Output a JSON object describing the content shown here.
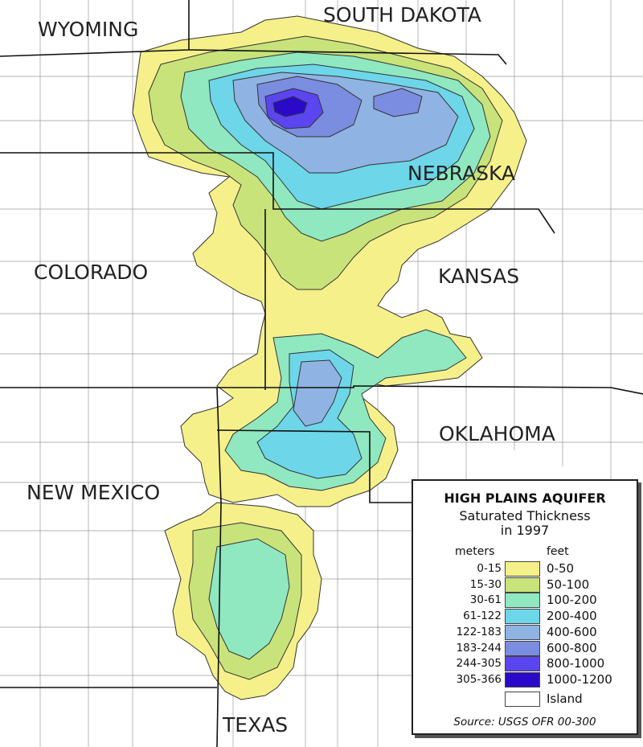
{
  "states": {
    "wyoming": "WYOMING",
    "south_dakota": "SOUTH DAKOTA",
    "nebraska": "NEBRASKA",
    "colorado": "COLORADO",
    "kansas": "KANSAS",
    "oklahoma": "OKLAHOMA",
    "new_mexico": "NEW MEXICO",
    "texas": "TEXAS"
  },
  "legend": {
    "title": "HIGH PLAINS AQUIFER",
    "subtitle_line1": "Saturated Thickness",
    "subtitle_line2": "in 1997",
    "meters_header": "meters",
    "feet_header": "feet",
    "classes": [
      {
        "meters": "0-15",
        "feet": "0-50",
        "color": "#f5f08a"
      },
      {
        "meters": "15-30",
        "feet": "50-100",
        "color": "#c8e37a"
      },
      {
        "meters": "30-61",
        "feet": "100-200",
        "color": "#8fe8c0"
      },
      {
        "meters": "61-122",
        "feet": "200-400",
        "color": "#6dd6e8"
      },
      {
        "meters": "122-183",
        "feet": "400-600",
        "color": "#8fb3e3"
      },
      {
        "meters": "183-244",
        "feet": "600-800",
        "color": "#7b8de0"
      },
      {
        "meters": "244-305",
        "feet": "800-1000",
        "color": "#5b45f0"
      },
      {
        "meters": "305-366",
        "feet": "1000-1200",
        "color": "#2a0ac8"
      }
    ],
    "island": {
      "label": "Island",
      "color": "#ffffff"
    },
    "source": "Source: USGS OFR 00-300"
  }
}
